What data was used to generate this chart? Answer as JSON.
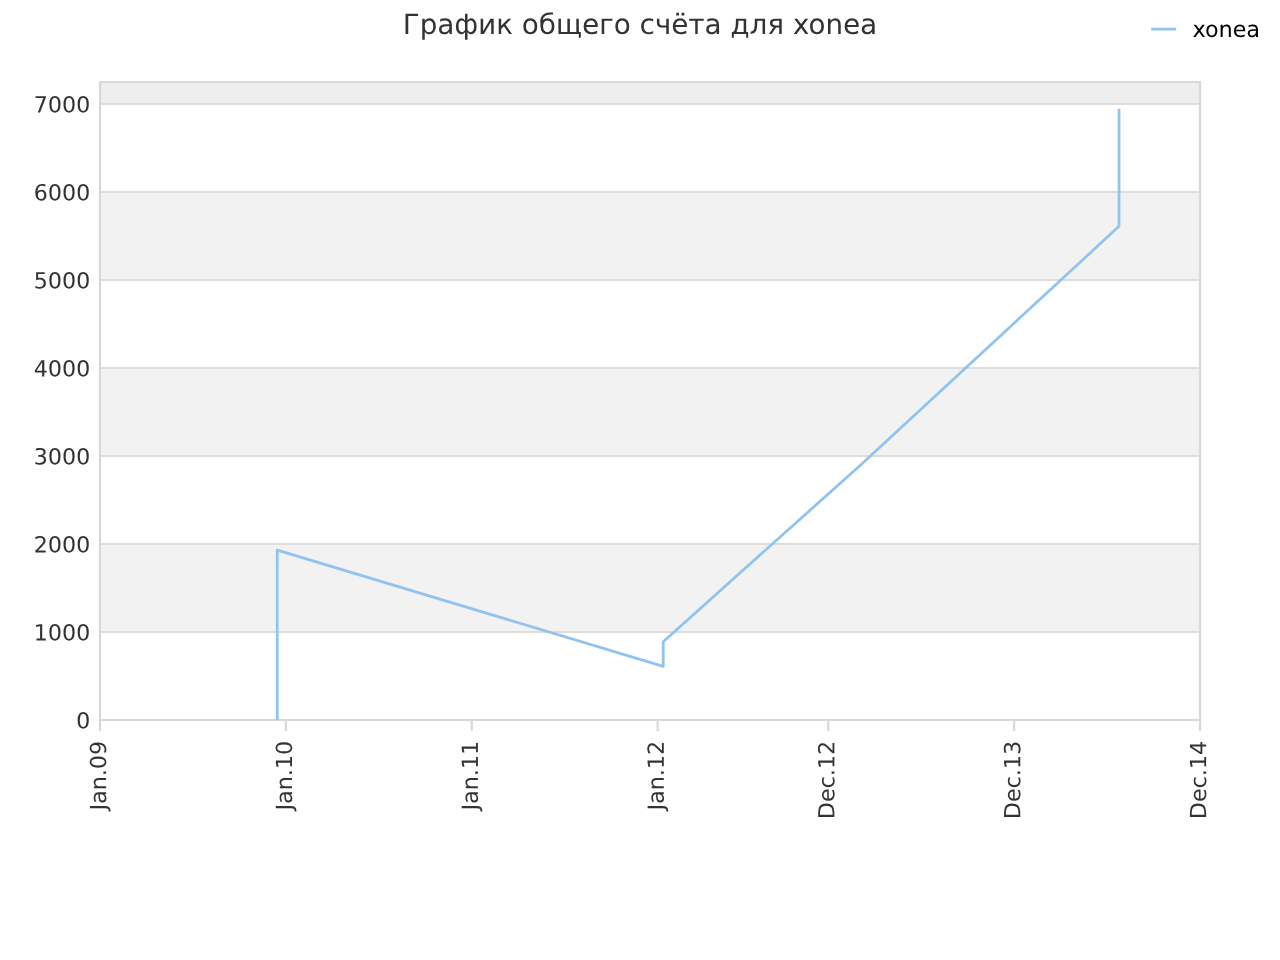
{
  "chart_data": {
    "type": "line",
    "title": "График общего счёта для xonea",
    "series": [
      {
        "name": "xonea",
        "color": "#90c3f0",
        "x": [
          "2009-12-15",
          "2009-12-15",
          "2012-01-12",
          "2012-01-12",
          "2013-02-01",
          "2014-06-25",
          "2014-06-25"
        ],
        "values": [
          0,
          1930,
          610,
          890,
          2890,
          5610,
          6930
        ]
      }
    ],
    "xlim": [
      "2009-01-01",
      "2014-12-01"
    ],
    "xticks": [
      {
        "value": "2009-01-01",
        "label": "Jan.09"
      },
      {
        "value": "2010-01-01",
        "label": "Jan.10"
      },
      {
        "value": "2011-01-01",
        "label": "Jan.11"
      },
      {
        "value": "2012-01-01",
        "label": "Jan.12"
      },
      {
        "value": "2012-12-01",
        "label": "Dec.12"
      },
      {
        "value": "2013-12-01",
        "label": "Dec.13"
      },
      {
        "value": "2014-12-01",
        "label": "Dec.14"
      }
    ],
    "ylim": [
      0,
      7250
    ],
    "yticks": [
      0,
      1000,
      2000,
      3000,
      4000,
      5000,
      6000,
      7000
    ],
    "bands": [
      {
        "axis": "y",
        "from": 1000,
        "to": 2000,
        "color": "#f2f2f2"
      },
      {
        "axis": "y",
        "from": 3000,
        "to": 4000,
        "color": "#f2f2f2"
      },
      {
        "axis": "y",
        "from": 5000,
        "to": 6000,
        "color": "#f2f2f2"
      },
      {
        "axis": "y",
        "from": 7000,
        "to": 7250,
        "color": "#eeeeee"
      }
    ],
    "grid": "y",
    "legend": "top right",
    "marker": "none",
    "line_style": "solid"
  }
}
